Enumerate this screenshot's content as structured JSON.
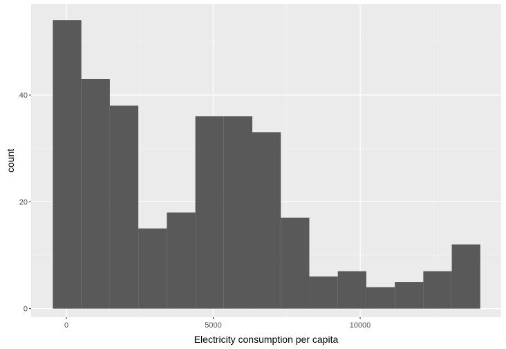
{
  "chart_data": {
    "type": "bar",
    "subtype": "histogram",
    "title": "",
    "xlabel": "Electricity consumption per capita",
    "ylabel": "count",
    "bin_width": 970,
    "bins": [
      {
        "x_start": -460,
        "x_end": 510,
        "count": 54
      },
      {
        "x_start": 510,
        "x_end": 1480,
        "count": 43
      },
      {
        "x_start": 1480,
        "x_end": 2450,
        "count": 38
      },
      {
        "x_start": 2450,
        "x_end": 3420,
        "count": 15
      },
      {
        "x_start": 3420,
        "x_end": 4390,
        "count": 18
      },
      {
        "x_start": 4390,
        "x_end": 5360,
        "count": 36
      },
      {
        "x_start": 5360,
        "x_end": 6330,
        "count": 36
      },
      {
        "x_start": 6330,
        "x_end": 7300,
        "count": 33
      },
      {
        "x_start": 7300,
        "x_end": 8270,
        "count": 17
      },
      {
        "x_start": 8270,
        "x_end": 9240,
        "count": 6
      },
      {
        "x_start": 9240,
        "x_end": 10210,
        "count": 7
      },
      {
        "x_start": 10210,
        "x_end": 11180,
        "count": 4
      },
      {
        "x_start": 11180,
        "x_end": 12150,
        "count": 5
      },
      {
        "x_start": 12150,
        "x_end": 13120,
        "count": 7
      },
      {
        "x_start": 13120,
        "x_end": 14090,
        "count": 12
      }
    ],
    "xlim": [
      -1200,
      14800
    ],
    "ylim": [
      -1.6,
      57
    ],
    "x_ticks": [
      {
        "value": 0,
        "label": "0"
      },
      {
        "value": 5000,
        "label": "5000"
      },
      {
        "value": 10000,
        "label": "10000"
      }
    ],
    "x_minor_ticks": [
      2500,
      7500,
      12500
    ],
    "y_ticks": [
      {
        "value": 0,
        "label": "0"
      },
      {
        "value": 20,
        "label": "20"
      },
      {
        "value": 40,
        "label": "40"
      }
    ],
    "y_minor_ticks": [
      10,
      30,
      50
    ],
    "grid": true,
    "legend": "none",
    "colors": {
      "bar_fill": "#595959",
      "panel_background": "#ebebeb",
      "grid_major": "#ffffff",
      "grid_minor": "#f5f5f5",
      "tick_label": "#4d4d4d",
      "axis_title": "#000000"
    }
  }
}
